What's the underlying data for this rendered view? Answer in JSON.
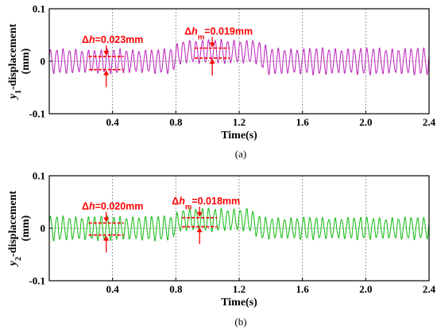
{
  "chart_data": [
    {
      "type": "line",
      "panel": "(a)",
      "caption": "(a)",
      "ylabel": "y1-displacement\n(mm)",
      "ylabel_var": "y",
      "ylabel_sub": "1",
      "ylabel_rest": "-displacement",
      "ylabel_unit": "(mm)",
      "xlabel": "Time(s)",
      "xlim": [
        0,
        2.4
      ],
      "ylim": [
        -0.1,
        0.1
      ],
      "xticks": [
        "0.4",
        "0.8",
        "1.2",
        "1.6",
        "2.0",
        "2.4"
      ],
      "yticks": [
        "-0.1",
        "0",
        "0.1"
      ],
      "xtick_values": [
        0.4,
        0.8,
        1.2,
        1.6,
        2.0,
        2.4
      ],
      "ytick_values": [
        -0.1,
        0,
        0.1
      ],
      "grid": "dotted",
      "color": "#cc33cc",
      "series": [
        {
          "frequency_hz": 25,
          "segments": [
            {
              "t0": 0.0,
              "t1": 0.8,
              "offset": 0.0,
              "amplitude": 0.021
            },
            {
              "t0": 0.8,
              "t1": 1.35,
              "offset": 0.018,
              "amplitude": 0.021
            },
            {
              "t0": 1.35,
              "t1": 2.4,
              "offset": 0.0,
              "amplitude": 0.023
            }
          ]
        }
      ],
      "annotations": [
        {
          "text": "Δh=0.023mm",
          "prefix": "Δ",
          "var": "h",
          "sub": "",
          "rest": "=0.023mm",
          "x": 0.36,
          "y_top": 0.009,
          "y_bottom": -0.016
        },
        {
          "text": "Δhm=0.019mm",
          "prefix": "Δ",
          "var": "h",
          "sub": "m",
          "rest": "=0.019mm",
          "x": 1.03,
          "y_top": 0.025,
          "y_bottom": 0.006
        }
      ]
    },
    {
      "type": "line",
      "panel": "(b)",
      "caption": "(b)",
      "ylabel": "y2-displacement\n(mm)",
      "ylabel_var": "y",
      "ylabel_sub": "2",
      "ylabel_rest": "-displacement",
      "ylabel_unit": "(mm)",
      "xlabel": "Time(s)",
      "xlim": [
        0,
        2.4
      ],
      "ylim": [
        -0.1,
        0.1
      ],
      "xticks": [
        "0.4",
        "0.8",
        "1.2",
        "1.6",
        "2.0",
        "2.4"
      ],
      "yticks": [
        "-0.1",
        "0",
        "0.1"
      ],
      "xtick_values": [
        0.4,
        0.8,
        1.2,
        1.6,
        2.0,
        2.4
      ],
      "ytick_values": [
        -0.1,
        0,
        0.1
      ],
      "grid": "dotted",
      "color": "#22cc22",
      "series": [
        {
          "frequency_hz": 25,
          "segments": [
            {
              "t0": 0.0,
              "t1": 0.8,
              "offset": 0.0,
              "amplitude": 0.021
            },
            {
              "t0": 0.8,
              "t1": 1.3,
              "offset": 0.016,
              "amplitude": 0.02
            },
            {
              "t0": 1.3,
              "t1": 2.4,
              "offset": 0.0,
              "amplitude": 0.019
            }
          ]
        }
      ],
      "annotations": [
        {
          "text": "Δh=0.020mm",
          "prefix": "Δ",
          "var": "h",
          "sub": "",
          "rest": "=0.020mm",
          "x": 0.36,
          "y_top": 0.01,
          "y_bottom": -0.013
        },
        {
          "text": "Δhm=0.018mm",
          "prefix": "Δ",
          "var": "h",
          "sub": "m",
          "rest": "=0.018mm",
          "x": 0.95,
          "y_top": 0.02,
          "y_bottom": 0.003
        }
      ]
    }
  ]
}
